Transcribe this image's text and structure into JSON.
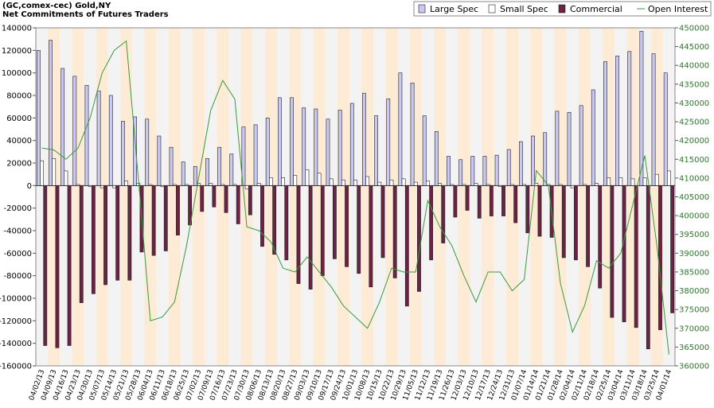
{
  "chart_data": {
    "type": "bar",
    "title": "(GC,comex-cec) Gold,NY",
    "subtitle": "Net Commitments of Futures Traders",
    "categories": [
      "04/02/13",
      "04/09/13",
      "04/16/13",
      "04/23/13",
      "04/30/13",
      "05/07/13",
      "05/14/13",
      "05/21/13",
      "05/28/13",
      "06/04/13",
      "06/11/13",
      "06/18/13",
      "06/25/13",
      "07/02/13",
      "07/09/13",
      "07/16/13",
      "07/23/13",
      "07/30/13",
      "08/06/13",
      "08/13/13",
      "08/20/13",
      "08/27/13",
      "09/03/13",
      "09/10/13",
      "09/17/13",
      "09/24/13",
      "10/01/13",
      "10/08/13",
      "10/15/13",
      "10/22/13",
      "10/29/13",
      "11/05/13",
      "11/12/13",
      "11/19/13",
      "11/26/13",
      "12/03/13",
      "12/10/13",
      "12/17/13",
      "12/24/13",
      "12/31/13",
      "01/07/14",
      "01/14/14",
      "01/21/14",
      "01/28/14",
      "02/04/14",
      "02/11/14",
      "02/18/14",
      "02/25/14",
      "03/04/14",
      "03/11/14",
      "03/18/14",
      "03/25/14",
      "04/01/14"
    ],
    "series": [
      {
        "name": "Large Spec",
        "color": "#c8c8f0",
        "values": [
          120000,
          129000,
          104000,
          97000,
          89000,
          84000,
          80000,
          57000,
          61000,
          59000,
          44000,
          34000,
          21000,
          17000,
          24000,
          34000,
          28000,
          52000,
          54000,
          60000,
          78000,
          78000,
          69000,
          68000,
          59000,
          67000,
          73000,
          82000,
          62000,
          77000,
          100000,
          91000,
          62000,
          48000,
          26000,
          23000,
          26000,
          26000,
          27000,
          32000,
          39000,
          44000,
          47000,
          66000,
          65000,
          71000,
          85000,
          110000,
          115000,
          119000,
          137000,
          117000,
          100000
        ]
      },
      {
        "name": "Small Spec",
        "color": "#ffffff",
        "values": [
          22000,
          24000,
          13000,
          1000,
          -1000,
          -2000,
          -2000,
          4000,
          2000,
          1000,
          -1000,
          1000,
          1000,
          2000,
          2000,
          1000,
          1000,
          -3000,
          2000,
          7000,
          7000,
          9000,
          14000,
          11000,
          6000,
          5000,
          5000,
          8000,
          3000,
          5000,
          6000,
          3000,
          4000,
          2000,
          1000,
          1000,
          2000,
          1000,
          -1000,
          1000,
          1000,
          2000,
          1000,
          1000,
          -2000,
          1000,
          2000,
          7000,
          7000,
          6000,
          7000,
          10000,
          13000
        ]
      },
      {
        "name": "Commercial",
        "color": "#6b2345",
        "values": [
          -142000,
          -144000,
          -142000,
          -104000,
          -96000,
          -88000,
          -84000,
          -84000,
          -59000,
          -62000,
          -58000,
          -44000,
          -35000,
          -23000,
          -19000,
          -24000,
          -34000,
          -26000,
          -54000,
          -61000,
          -66000,
          -87000,
          -92000,
          -80000,
          -65000,
          -72000,
          -78000,
          -90000,
          -64000,
          -82000,
          -107000,
          -94000,
          -66000,
          -51000,
          -28000,
          -22000,
          -29000,
          -27000,
          -27000,
          -33000,
          -42000,
          -45000,
          -46000,
          -64000,
          -66000,
          -72000,
          -91000,
          -117000,
          -121000,
          -126000,
          -145000,
          -128000,
          -113000
        ]
      },
      {
        "name": "Open Interest",
        "color": "#3a9a3a",
        "type": "line",
        "axis": "y2",
        "values": [
          418000,
          417500,
          415000,
          418000,
          426000,
          438000,
          444000,
          446500,
          410000,
          372000,
          373000,
          377000,
          392000,
          410000,
          428000,
          436000,
          431000,
          397000,
          396000,
          393000,
          386000,
          385000,
          389000,
          385000,
          381000,
          376000,
          373000,
          370000,
          377000,
          386000,
          385000,
          385000,
          404000,
          397000,
          392000,
          384000,
          377000,
          385000,
          385000,
          380000,
          383000,
          412000,
          408000,
          382000,
          369000,
          376000,
          388000,
          386000,
          390000,
          403000,
          416000,
          392000,
          363000
        ]
      }
    ],
    "ylim": [
      -160000,
      140000
    ],
    "yticks": [
      -160000,
      -140000,
      -120000,
      -100000,
      -80000,
      -60000,
      -40000,
      -20000,
      0,
      20000,
      40000,
      60000,
      80000,
      100000,
      120000,
      140000
    ],
    "y2lim": [
      360000,
      450000
    ],
    "y2ticks": [
      360000,
      365000,
      370000,
      375000,
      380000,
      385000,
      390000,
      395000,
      400000,
      405000,
      410000,
      415000,
      420000,
      425000,
      430000,
      435000,
      440000,
      445000,
      450000
    ],
    "legend": "top-right"
  }
}
